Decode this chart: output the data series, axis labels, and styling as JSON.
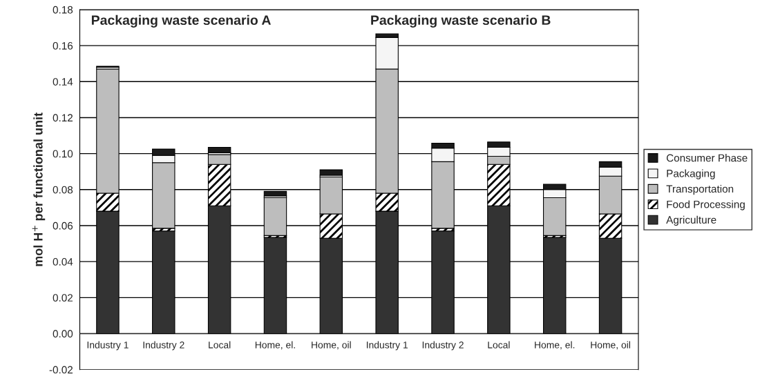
{
  "chart_data": {
    "type": "bar",
    "stacked": true,
    "categories": [
      "Industry 1",
      "Industry 2",
      "Local",
      "Home, el.",
      "Home, oil",
      "Industry 1",
      "Industry 2",
      "Local",
      "Home, el.",
      "Home, oil"
    ],
    "series": [
      {
        "name": "Agriculture",
        "color": "#333333",
        "values": [
          0.068,
          0.057,
          0.071,
          0.0535,
          0.053,
          0.068,
          0.057,
          0.071,
          0.0535,
          0.053
        ]
      },
      {
        "name": "Food Processing",
        "color": "#000000",
        "values": [
          0.01,
          0.0015,
          0.023,
          0.001,
          0.0135,
          0.01,
          0.0015,
          0.023,
          0.001,
          0.0135
        ]
      },
      {
        "name": "Transportation",
        "color": "#bdbdbd",
        "values": [
          0.069,
          0.0365,
          0.0055,
          0.021,
          0.0205,
          0.069,
          0.037,
          0.0045,
          0.021,
          0.021
        ]
      },
      {
        "name": "Packaging",
        "color": "#f5f5f5",
        "values": [
          0.001,
          0.004,
          0.001,
          0.001,
          0.001,
          0.0175,
          0.0075,
          0.005,
          0.0045,
          0.005
        ]
      },
      {
        "name": "Consumer Phase",
        "color": "#1a1a1a",
        "values": [
          0.0005,
          0.0035,
          0.003,
          0.0025,
          0.003,
          0.002,
          0.0028,
          0.003,
          0.003,
          0.003
        ]
      }
    ],
    "ylabel": "mol H$^{+}$ per functional unit",
    "ylim": [
      -0.02,
      0.18
    ],
    "yticks": [
      {
        "value": -0.02,
        "label": "-0.02"
      },
      {
        "value": 0,
        "label": "0.00"
      },
      {
        "value": 0.02,
        "label": "0.02"
      },
      {
        "value": 0.04,
        "label": "0.04"
      },
      {
        "value": 0.06,
        "label": "0.06"
      },
      {
        "value": 0.08,
        "label": "0.08"
      },
      {
        "value": 0.1,
        "label": "0.10"
      },
      {
        "value": 0.12,
        "label": "0.12"
      },
      {
        "value": 0.14,
        "label": "0.14"
      },
      {
        "value": 0.16,
        "label": "0.16"
      },
      {
        "value": 0.18,
        "label": "0.18"
      }
    ],
    "annotations": [
      "Packaging waste scenario A",
      "Packaging waste scenario B"
    ],
    "grid": "y",
    "legend": "right"
  }
}
